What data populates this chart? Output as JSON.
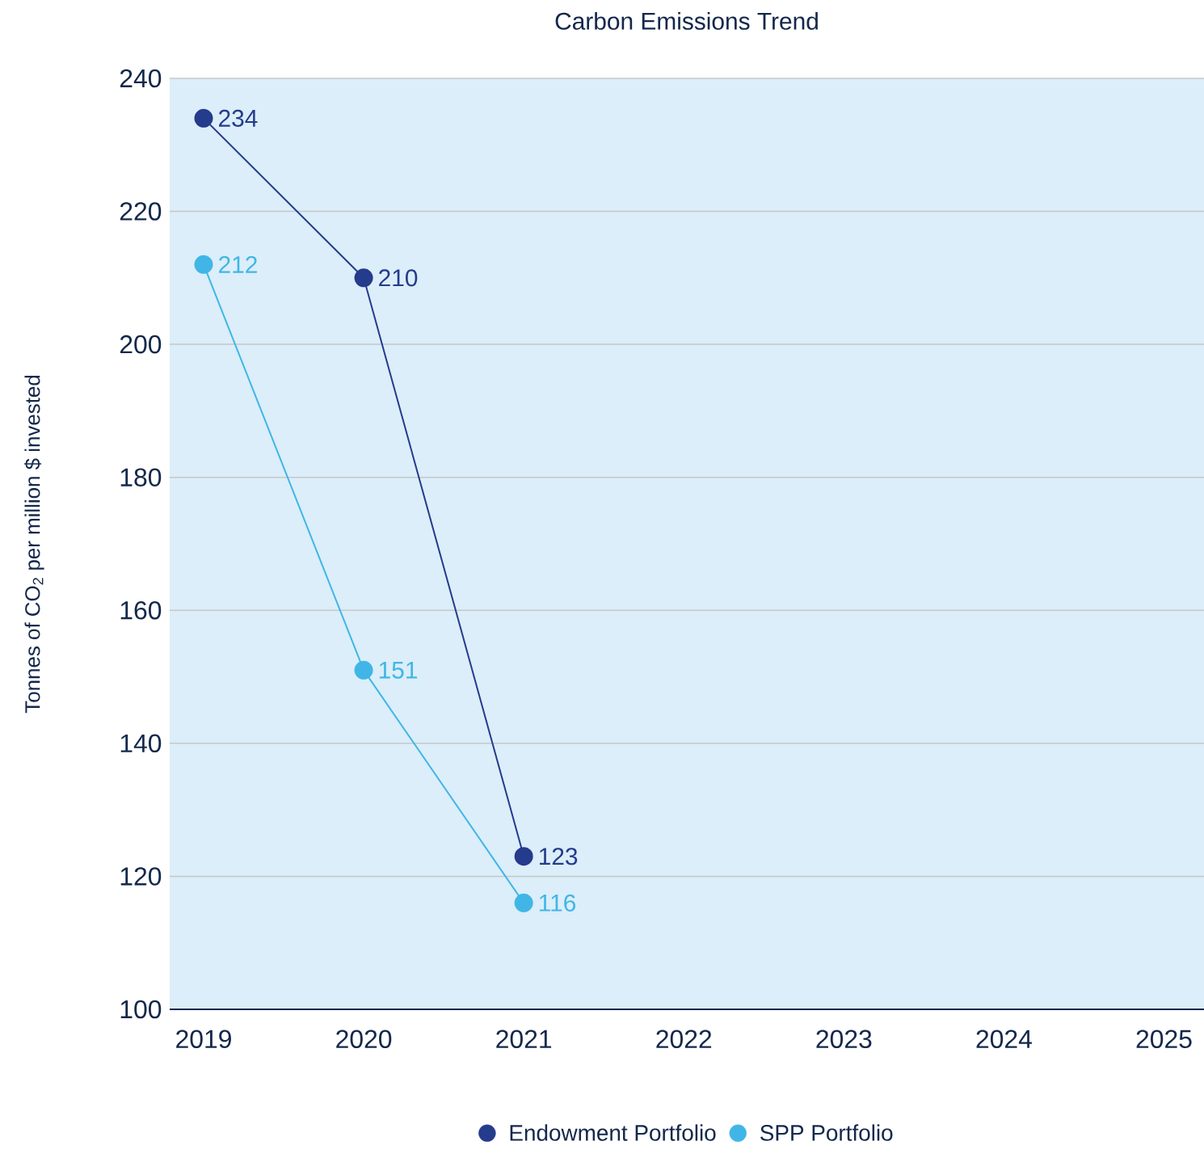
{
  "chart_data": {
    "type": "line",
    "title": "Carbon Emissions Trend",
    "ylabel": "Tonnes of CO$_{2}$ per million $ invested",
    "categories": [
      "2019",
      "2020",
      "2021",
      "2022",
      "2023",
      "2024",
      "2025"
    ],
    "series": [
      {
        "name": "Endowment Portfolio",
        "color": "#253b8c",
        "values": [
          234,
          210,
          123,
          null,
          null,
          null,
          null
        ]
      },
      {
        "name": "SPP Portfolio",
        "color": "#41b6e6",
        "values": [
          212,
          151,
          116,
          null,
          null,
          null,
          null
        ]
      }
    ],
    "ylim": [
      100,
      240
    ],
    "yticks": [
      100,
      120,
      140,
      160,
      180,
      200,
      220,
      240
    ],
    "grid": "y",
    "legend": "bottom",
    "marker": "circle",
    "line_style": "solid",
    "data_labels": true
  }
}
